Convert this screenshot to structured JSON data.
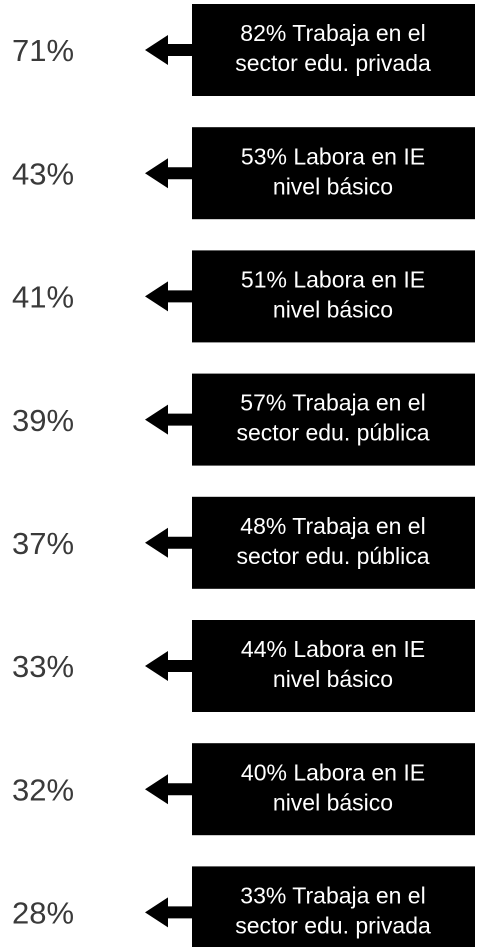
{
  "items": [
    {
      "percent": "71%",
      "lines": [
        "82% Trabaja en el",
        "sector edu. privada"
      ]
    },
    {
      "percent": "43%",
      "lines": [
        "53% Labora en IE",
        "nivel básico"
      ]
    },
    {
      "percent": "41%",
      "lines": [
        "51% Labora en IE",
        "nivel básico"
      ]
    },
    {
      "percent": "39%",
      "lines": [
        "57% Trabaja en el",
        "sector edu. pública"
      ]
    },
    {
      "percent": "37%",
      "lines": [
        "48% Trabaja en el",
        "sector edu. pública"
      ]
    },
    {
      "percent": "33%",
      "lines": [
        "44% Labora en IE",
        "nivel básico"
      ]
    },
    {
      "percent": "32%",
      "lines": [
        "40% Labora en IE",
        "nivel básico"
      ]
    },
    {
      "percent": "28%",
      "lines": [
        "33% Trabaja en el",
        "sector edu. privada"
      ]
    }
  ]
}
